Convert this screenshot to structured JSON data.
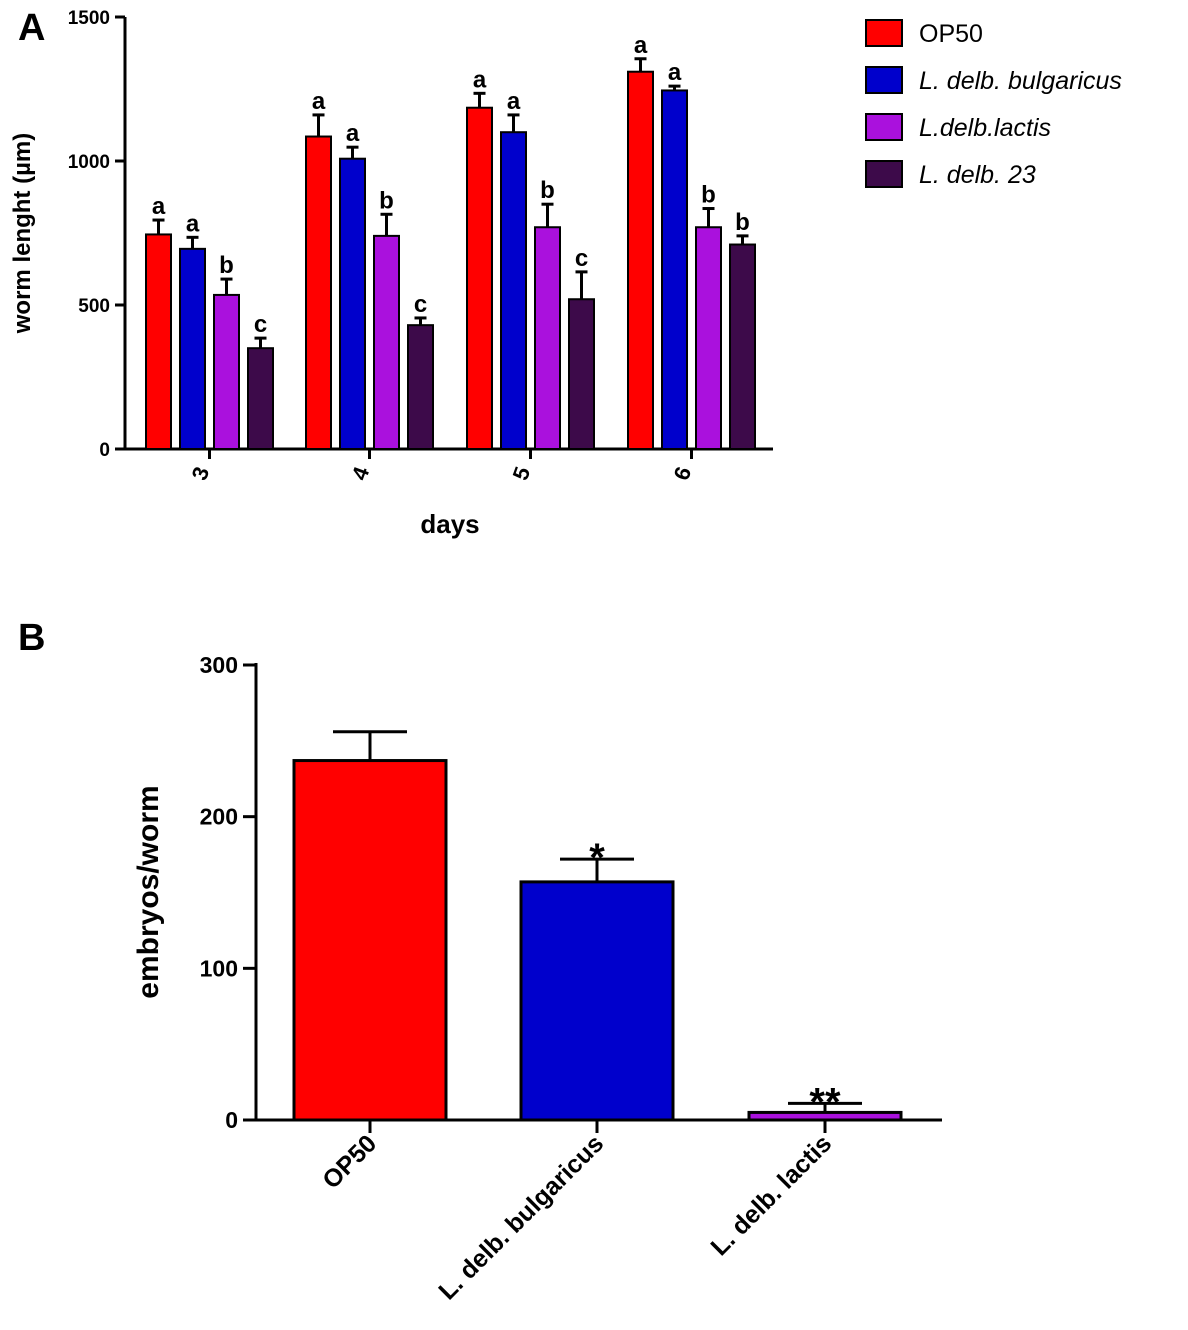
{
  "chart_data": [
    {
      "panel": "A",
      "type": "bar",
      "ylabel": "worm lenght (µm)",
      "xlabel": "days",
      "ylim": [
        0,
        1500
      ],
      "yticks": [
        0,
        500,
        1000,
        1500
      ],
      "categories": [
        "3",
        "4",
        "5",
        "6"
      ],
      "series": [
        {
          "name": "OP50",
          "color": "#ff0000",
          "italic": false,
          "values": [
            745,
            1085,
            1185,
            1310
          ],
          "errors": [
            50,
            75,
            50,
            45
          ],
          "letters": [
            "a",
            "a",
            "a",
            "a"
          ]
        },
        {
          "name": "L. delb. bulgaricus",
          "color": "#0000cc",
          "italic": true,
          "values": [
            695,
            1008,
            1100,
            1245
          ],
          "errors": [
            40,
            40,
            60,
            15
          ],
          "letters": [
            "a",
            "a",
            "a",
            "a"
          ]
        },
        {
          "name": "L.delb.lactis",
          "color": "#aa11dd",
          "italic": true,
          "values": [
            535,
            740,
            770,
            770
          ],
          "errors": [
            55,
            75,
            80,
            65
          ],
          "letters": [
            "b",
            "b",
            "b",
            "b"
          ]
        },
        {
          "name": "L. delb. 23",
          "color": "#3d0a4a",
          "italic": true,
          "values": [
            350,
            430,
            520,
            710
          ],
          "errors": [
            35,
            25,
            95,
            30
          ],
          "letters": [
            "c",
            "c",
            "c",
            "b"
          ]
        }
      ]
    },
    {
      "panel": "B",
      "type": "bar",
      "ylabel": "embryos/worm",
      "xlabel": "",
      "ylim": [
        0,
        300
      ],
      "yticks": [
        0,
        100,
        200,
        300
      ],
      "categories": [
        "OP50",
        "L. delb. bulgaricus",
        "L. delb. lactis"
      ],
      "colors": [
        "#ff0000",
        "#0000cc",
        "#aa11dd"
      ],
      "values": [
        237,
        157,
        5
      ],
      "errors": [
        19,
        15,
        6
      ],
      "annotations": [
        "",
        "*",
        "**"
      ]
    }
  ]
}
